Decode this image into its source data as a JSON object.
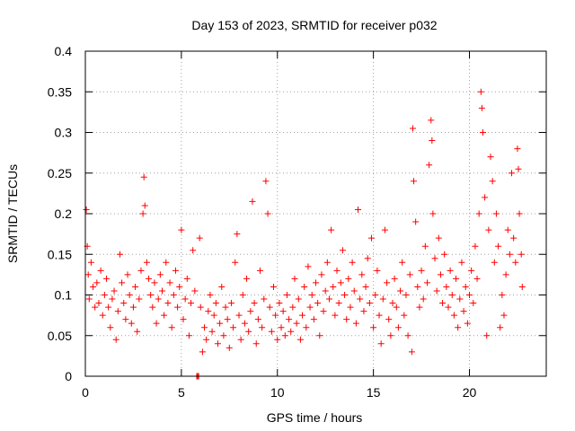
{
  "chart_data": {
    "type": "scatter",
    "title": "Day 153 of 2023, SRMTID for receiver p032",
    "xlabel": "GPS time / hours",
    "ylabel": "SRMTID / TECUs",
    "xlim": [
      0,
      24
    ],
    "ylim": [
      0,
      0.4
    ],
    "x_ticks": [
      0,
      5,
      10,
      15,
      20
    ],
    "x_tick_labels": [
      "0",
      "5",
      "10",
      "15",
      "20"
    ],
    "y_ticks": [
      0,
      0.05,
      0.1,
      0.15,
      0.2,
      0.25,
      0.3,
      0.35,
      0.4
    ],
    "y_tick_labels": [
      "0",
      "0.05",
      "0.1",
      "0.15",
      "0.2",
      "0.25",
      "0.3",
      "0.35",
      "0.4"
    ],
    "grid": true,
    "marker": "+",
    "series": [
      {
        "name": "SRMTID",
        "color": "#ff0000",
        "points": [
          [
            0.05,
            0.205
          ],
          [
            0.1,
            0.16
          ],
          [
            0.15,
            0.125
          ],
          [
            0.2,
            0.095
          ],
          [
            0.3,
            0.14
          ],
          [
            0.4,
            0.11
          ],
          [
            0.5,
            0.085
          ],
          [
            0.6,
            0.115
          ],
          [
            0.7,
            0.09
          ],
          [
            0.8,
            0.13
          ],
          [
            0.9,
            0.075
          ],
          [
            1.0,
            0.1
          ],
          [
            1.1,
            0.12
          ],
          [
            1.2,
            0.085
          ],
          [
            1.3,
            0.06
          ],
          [
            1.4,
            0.095
          ],
          [
            1.5,
            0.105
          ],
          [
            1.6,
            0.045
          ],
          [
            1.7,
            0.08
          ],
          [
            1.8,
            0.15
          ],
          [
            1.9,
            0.115
          ],
          [
            2.0,
            0.09
          ],
          [
            2.1,
            0.07
          ],
          [
            2.2,
            0.125
          ],
          [
            2.3,
            0.1
          ],
          [
            2.4,
            0.065
          ],
          [
            2.5,
            0.085
          ],
          [
            2.6,
            0.11
          ],
          [
            2.7,
            0.055
          ],
          [
            2.8,
            0.095
          ],
          [
            2.9,
            0.13
          ],
          [
            3.0,
            0.2
          ],
          [
            3.05,
            0.245
          ],
          [
            3.1,
            0.21
          ],
          [
            3.2,
            0.14
          ],
          [
            3.3,
            0.12
          ],
          [
            3.4,
            0.1
          ],
          [
            3.5,
            0.085
          ],
          [
            3.6,
            0.115
          ],
          [
            3.7,
            0.065
          ],
          [
            3.8,
            0.095
          ],
          [
            3.9,
            0.125
          ],
          [
            4.0,
            0.105
          ],
          [
            4.1,
            0.075
          ],
          [
            4.2,
            0.14
          ],
          [
            4.3,
            0.09
          ],
          [
            4.4,
            0.115
          ],
          [
            4.5,
            0.06
          ],
          [
            4.6,
            0.1
          ],
          [
            4.7,
            0.13
          ],
          [
            4.8,
            0.085
          ],
          [
            4.9,
            0.11
          ],
          [
            5.0,
            0.18
          ],
          [
            5.1,
            0.07
          ],
          [
            5.2,
            0.095
          ],
          [
            5.3,
            0.12
          ],
          [
            5.4,
            0.05
          ],
          [
            5.5,
            0.09
          ],
          [
            5.6,
            0.155
          ],
          [
            5.7,
            0.105
          ],
          [
            5.8,
            0.0
          ],
          [
            5.85,
            0.0
          ],
          [
            5.9,
            0.0
          ],
          [
            5.95,
            0.17
          ],
          [
            6.0,
            0.085
          ],
          [
            6.1,
            0.03
          ],
          [
            6.2,
            0.06
          ],
          [
            6.3,
            0.045
          ],
          [
            6.4,
            0.08
          ],
          [
            6.5,
            0.1
          ],
          [
            6.6,
            0.055
          ],
          [
            6.7,
            0.075
          ],
          [
            6.8,
            0.09
          ],
          [
            6.9,
            0.04
          ],
          [
            7.0,
            0.065
          ],
          [
            7.1,
            0.11
          ],
          [
            7.2,
            0.05
          ],
          [
            7.3,
            0.085
          ],
          [
            7.4,
            0.07
          ],
          [
            7.5,
            0.035
          ],
          [
            7.6,
            0.09
          ],
          [
            7.7,
            0.06
          ],
          [
            7.8,
            0.14
          ],
          [
            7.9,
            0.175
          ],
          [
            8.0,
            0.075
          ],
          [
            8.1,
            0.045
          ],
          [
            8.2,
            0.1
          ],
          [
            8.3,
            0.065
          ],
          [
            8.4,
            0.12
          ],
          [
            8.5,
            0.055
          ],
          [
            8.6,
            0.08
          ],
          [
            8.7,
            0.215
          ],
          [
            8.8,
            0.09
          ],
          [
            8.9,
            0.04
          ],
          [
            9.0,
            0.07
          ],
          [
            9.1,
            0.13
          ],
          [
            9.2,
            0.06
          ],
          [
            9.3,
            0.095
          ],
          [
            9.4,
            0.24
          ],
          [
            9.5,
            0.2
          ],
          [
            9.6,
            0.085
          ],
          [
            9.7,
            0.055
          ],
          [
            9.8,
            0.11
          ],
          [
            9.9,
            0.075
          ],
          [
            10.0,
            0.045
          ],
          [
            10.1,
            0.09
          ],
          [
            10.2,
            0.06
          ],
          [
            10.3,
            0.08
          ],
          [
            10.4,
            0.05
          ],
          [
            10.5,
            0.1
          ],
          [
            10.6,
            0.07
          ],
          [
            10.7,
            0.055
          ],
          [
            10.8,
            0.085
          ],
          [
            10.9,
            0.12
          ],
          [
            11.0,
            0.065
          ],
          [
            11.1,
            0.095
          ],
          [
            11.2,
            0.045
          ],
          [
            11.3,
            0.075
          ],
          [
            11.4,
            0.11
          ],
          [
            11.5,
            0.06
          ],
          [
            11.6,
            0.135
          ],
          [
            11.7,
            0.085
          ],
          [
            11.8,
            0.1
          ],
          [
            11.9,
            0.07
          ],
          [
            12.0,
            0.115
          ],
          [
            12.1,
            0.09
          ],
          [
            12.2,
            0.05
          ],
          [
            12.3,
            0.125
          ],
          [
            12.4,
            0.08
          ],
          [
            12.5,
            0.105
          ],
          [
            12.6,
            0.14
          ],
          [
            12.7,
            0.095
          ],
          [
            12.8,
            0.18
          ],
          [
            12.9,
            0.11
          ],
          [
            13.0,
            0.075
          ],
          [
            13.1,
            0.13
          ],
          [
            13.2,
            0.09
          ],
          [
            13.3,
            0.115
          ],
          [
            13.4,
            0.155
          ],
          [
            13.5,
            0.1
          ],
          [
            13.6,
            0.07
          ],
          [
            13.7,
            0.12
          ],
          [
            13.8,
            0.085
          ],
          [
            13.9,
            0.14
          ],
          [
            14.0,
            0.105
          ],
          [
            14.1,
            0.065
          ],
          [
            14.2,
            0.205
          ],
          [
            14.3,
            0.095
          ],
          [
            14.4,
            0.125
          ],
          [
            14.5,
            0.08
          ],
          [
            14.6,
            0.11
          ],
          [
            14.7,
            0.145
          ],
          [
            14.8,
            0.09
          ],
          [
            14.9,
            0.17
          ],
          [
            15.0,
            0.06
          ],
          [
            15.1,
            0.1
          ],
          [
            15.2,
            0.13
          ],
          [
            15.3,
            0.075
          ],
          [
            15.4,
            0.04
          ],
          [
            15.5,
            0.095
          ],
          [
            15.6,
            0.18
          ],
          [
            15.7,
            0.115
          ],
          [
            15.8,
            0.07
          ],
          [
            15.9,
            0.05
          ],
          [
            16.0,
            0.09
          ],
          [
            16.1,
            0.12
          ],
          [
            16.2,
            0.085
          ],
          [
            16.3,
            0.06
          ],
          [
            16.4,
            0.105
          ],
          [
            16.5,
            0.14
          ],
          [
            16.6,
            0.075
          ],
          [
            16.7,
            0.1
          ],
          [
            16.8,
            0.05
          ],
          [
            16.9,
            0.125
          ],
          [
            17.0,
            0.03
          ],
          [
            17.05,
            0.305
          ],
          [
            17.1,
            0.24
          ],
          [
            17.2,
            0.19
          ],
          [
            17.3,
            0.11
          ],
          [
            17.4,
            0.085
          ],
          [
            17.5,
            0.13
          ],
          [
            17.6,
            0.095
          ],
          [
            17.7,
            0.16
          ],
          [
            17.8,
            0.115
          ],
          [
            17.9,
            0.26
          ],
          [
            18.0,
            0.315
          ],
          [
            18.05,
            0.29
          ],
          [
            18.1,
            0.2
          ],
          [
            18.2,
            0.145
          ],
          [
            18.3,
            0.105
          ],
          [
            18.4,
            0.17
          ],
          [
            18.5,
            0.125
          ],
          [
            18.6,
            0.09
          ],
          [
            18.7,
            0.15
          ],
          [
            18.8,
            0.11
          ],
          [
            18.9,
            0.085
          ],
          [
            19.0,
            0.13
          ],
          [
            19.1,
            0.1
          ],
          [
            19.2,
            0.075
          ],
          [
            19.3,
            0.12
          ],
          [
            19.4,
            0.06
          ],
          [
            19.5,
            0.095
          ],
          [
            19.6,
            0.14
          ],
          [
            19.7,
            0.08
          ],
          [
            19.8,
            0.11
          ],
          [
            19.9,
            0.065
          ],
          [
            20.0,
            0.1
          ],
          [
            20.1,
            0.13
          ],
          [
            20.2,
            0.09
          ],
          [
            20.3,
            0.16
          ],
          [
            20.4,
            0.12
          ],
          [
            20.5,
            0.2
          ],
          [
            20.6,
            0.35
          ],
          [
            20.65,
            0.33
          ],
          [
            20.7,
            0.3
          ],
          [
            20.8,
            0.22
          ],
          [
            20.9,
            0.05
          ],
          [
            21.0,
            0.18
          ],
          [
            21.1,
            0.27
          ],
          [
            21.2,
            0.24
          ],
          [
            21.3,
            0.14
          ],
          [
            21.4,
            0.2
          ],
          [
            21.5,
            0.16
          ],
          [
            21.6,
            0.06
          ],
          [
            21.7,
            0.1
          ],
          [
            21.8,
            0.075
          ],
          [
            21.9,
            0.125
          ],
          [
            22.0,
            0.18
          ],
          [
            22.1,
            0.15
          ],
          [
            22.2,
            0.25
          ],
          [
            22.3,
            0.17
          ],
          [
            22.4,
            0.14
          ],
          [
            22.5,
            0.28
          ],
          [
            22.55,
            0.255
          ],
          [
            22.6,
            0.2
          ],
          [
            22.7,
            0.15
          ],
          [
            22.75,
            0.11
          ]
        ]
      }
    ]
  }
}
